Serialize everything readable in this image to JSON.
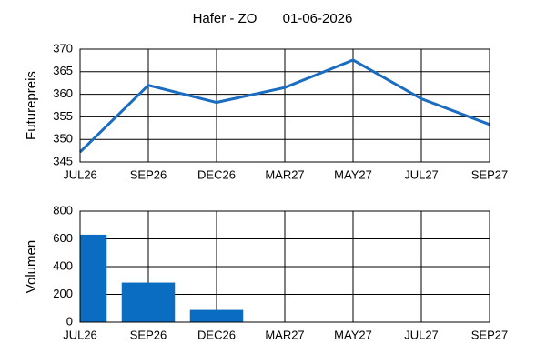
{
  "chart_data": [
    {
      "type": "line",
      "title": "Hafer - ZO",
      "subtitle": "01-06-2026",
      "y_label": "Futurepreis",
      "categories": [
        "JUL26",
        "SEP26",
        "DEC26",
        "MAR27",
        "MAY27",
        "JUL27",
        "SEP27"
      ],
      "values": [
        347.2,
        362,
        358.2,
        361.5,
        367.6,
        359,
        353.3
      ],
      "color": "#1a6dc0",
      "ylim": [
        345,
        370
      ],
      "yticks": [
        345,
        350,
        355,
        360,
        365,
        370
      ],
      "grid": true
    },
    {
      "type": "bar",
      "y_label": "Volumen",
      "categories": [
        "JUL26",
        "SEP26",
        "DEC26",
        "MAR27",
        "MAY27",
        "JUL27",
        "SEP27"
      ],
      "values": [
        630,
        285,
        88,
        null,
        null,
        null,
        null
      ],
      "color": "#0a6dc2",
      "ylim": [
        0,
        800
      ],
      "yticks": [
        0,
        200,
        400,
        600,
        800
      ],
      "grid": true
    }
  ]
}
